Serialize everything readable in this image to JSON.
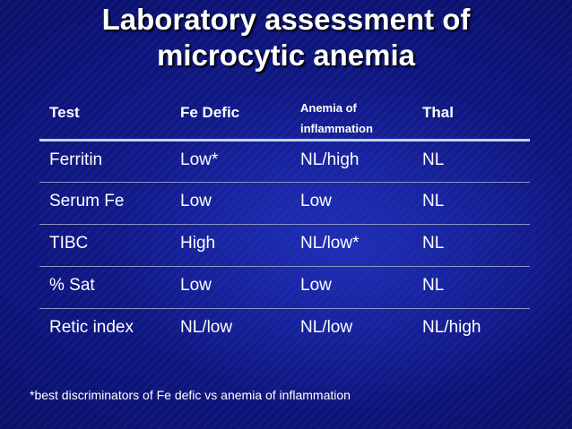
{
  "title": {
    "line1": "Laboratory assessment of",
    "line2": "microcytic anemia"
  },
  "table": {
    "headers": [
      "Test",
      "Fe Defic",
      "Anemia of inflammation",
      "Thal"
    ],
    "rows": [
      [
        "Ferritin",
        "Low*",
        "NL/high",
        "NL"
      ],
      [
        "Serum Fe",
        "Low",
        "Low",
        "NL"
      ],
      [
        "TIBC",
        "High",
        "NL/low*",
        "NL"
      ],
      [
        "% Sat",
        "Low",
        "Low",
        "NL"
      ],
      [
        "Retic index",
        "NL/low",
        "NL/low",
        "NL/high"
      ]
    ]
  },
  "footnote": "*best discriminators of Fe defic vs anemia of inflammation"
}
